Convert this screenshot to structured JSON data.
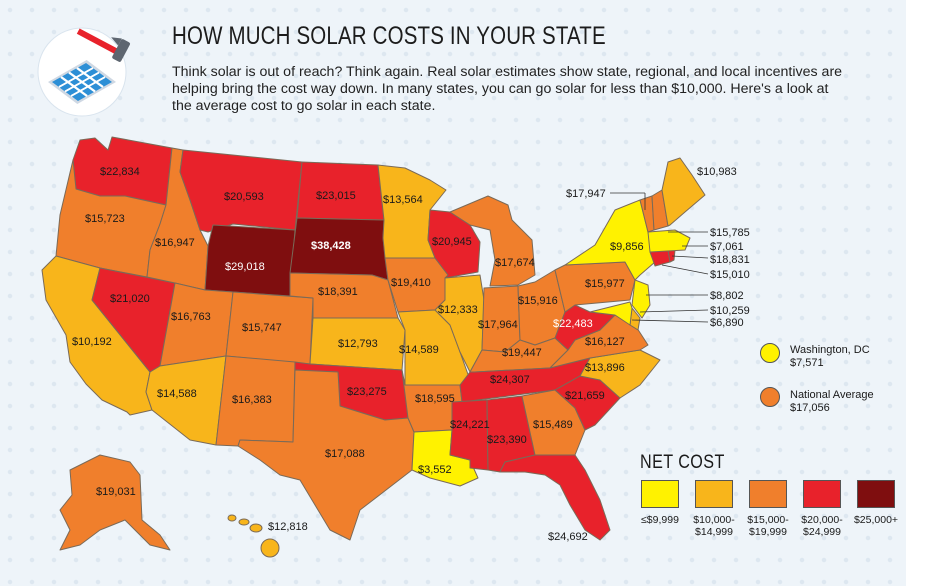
{
  "header": {
    "title": "HOW MUCH SOLAR COSTS IN YOUR STATE",
    "intro": "Think solar is out of reach? Think again. Real solar estimates show state, regional, and local incentives are helping bring the cost way down. In many states, you can go solar for less than $10,000. Here's a look at the average cost to go solar in each state."
  },
  "colors": {
    "tier1": "#fff200",
    "tier2": "#f8b51b",
    "tier3": "#f07f2c",
    "tier4": "#e8222b",
    "tier5": "#7f0e0f",
    "border": "#7a6a58"
  },
  "states": {
    "WA": "$22,834",
    "OR": "$15,723",
    "CA": "$10,192",
    "NV": "$21,020",
    "ID": "$16,947",
    "MT": "$20,593",
    "WY": "$29,018",
    "UT": "$16,763",
    "AZ": "$14,588",
    "CO": "$15,747",
    "NM": "$16,383",
    "ND": "$23,015",
    "SD": "$38,428",
    "NE": "$18,391",
    "KS": "$12,793",
    "OK": "$23,275",
    "TX": "$17,088",
    "MN": "$13,564",
    "IA": "$19,410",
    "MO": "$14,589",
    "AR": "$18,595",
    "LA": "$3,552",
    "WI": "$20,945",
    "IL": "$12,333",
    "MI": "$17,674",
    "IN": "$17,964",
    "OH": "$15,916",
    "KY": "$19,447",
    "TN": "$24,307",
    "MS": "$24,221",
    "AL": "$23,390",
    "GA": "$15,489",
    "FL": "$24,692",
    "SC": "$21,659",
    "NC": "$13,896",
    "VA": "$16,127",
    "WV": "$22,483",
    "PA": "$15,977",
    "NY": "$9,856",
    "ME": "$10,983",
    "AK": "$19,031",
    "HI": "$12,818"
  },
  "callouts": {
    "VT": "$17,947",
    "NH": "$15,785",
    "MA": "$7,061",
    "RI": "$18,831",
    "CT": "$15,010",
    "NJ": "$8,802",
    "DE": "$10,259",
    "MD": "$6,890"
  },
  "markers": {
    "dc_label": "Washington, DC",
    "dc_value": "$7,571",
    "avg_label": "National Average",
    "avg_value": "$17,056"
  },
  "legend": {
    "title": "NET COST",
    "tiers": [
      "≤$9,999",
      "$10,000-\n$14,999",
      "$15,000-\n$19,999",
      "$20,000-\n$24,999",
      "$25,000+"
    ]
  }
}
